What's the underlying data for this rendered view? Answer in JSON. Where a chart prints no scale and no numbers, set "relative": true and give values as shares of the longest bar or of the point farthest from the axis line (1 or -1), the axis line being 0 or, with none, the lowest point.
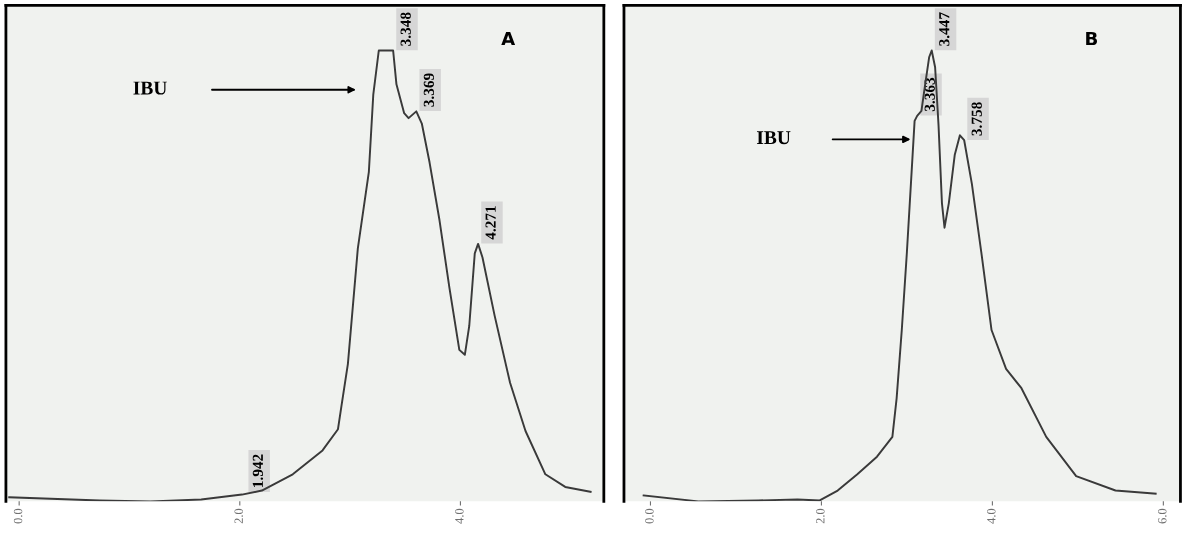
{
  "chart_data": [
    {
      "type": "line",
      "title": "A",
      "relative": true,
      "tick_labels": "x",
      "grid": false,
      "legend": false,
      "marker": "none",
      "line_style": "solid",
      "xlim": [
        -0.12,
        5.3
      ],
      "xticks": [
        {
          "value": 0,
          "label": "0.0"
        },
        {
          "value": 2,
          "label": "2.0"
        },
        {
          "value": 4,
          "label": "4.0"
        }
      ],
      "series": [
        {
          "color": "#3a3a3a",
          "x": [
            -0.09,
            0.73,
            1.19,
            1.65,
            2.02,
            2.2,
            2.48,
            2.75,
            2.89,
            2.92,
            2.98,
            3.07,
            3.17,
            3.21,
            3.26,
            3.39,
            3.42,
            3.49,
            3.53,
            3.6,
            3.65,
            3.72,
            3.81,
            3.9,
            3.99,
            4.04,
            4.08,
            4.13,
            4.16,
            4.2,
            4.31,
            4.45,
            4.59,
            4.77,
            4.95,
            5.18
          ],
          "values": [
            0.009,
            0.002,
            0,
            0.004,
            0.015,
            0.024,
            0.06,
            0.113,
            0.16,
            0.209,
            0.305,
            0.561,
            0.731,
            0.902,
            1.0,
            1.0,
            0.925,
            0.861,
            0.85,
            0.865,
            0.838,
            0.752,
            0.624,
            0.474,
            0.336,
            0.325,
            0.389,
            0.55,
            0.571,
            0.541,
            0.412,
            0.263,
            0.156,
            0.06,
            0.032,
            0.021
          ]
        }
      ],
      "annotations": [
        {
          "text": "3.348",
          "x": 3.39,
          "y": 1.0
        },
        {
          "text": "3.369",
          "x": 3.6,
          "y": 0.865
        },
        {
          "text": "4.271",
          "x": 4.16,
          "y": 0.571
        },
        {
          "text": "1.942",
          "x": 2.05,
          "y": 0.02
        },
        "IBU"
      ]
    },
    {
      "type": "line",
      "title": "B",
      "relative": true,
      "tick_labels": "x",
      "grid": false,
      "legend": false,
      "marker": "none",
      "line_style": "solid",
      "xlim": [
        -0.31,
        6.2
      ],
      "xticks": [
        {
          "value": 0,
          "label": "0.0"
        },
        {
          "value": 2,
          "label": "2.0"
        },
        {
          "value": 4,
          "label": "4.0"
        },
        {
          "value": 6,
          "label": "6.0"
        }
      ],
      "series": [
        {
          "color": "#3a3a3a",
          "x": [
            -0.08,
            0.56,
            1.26,
            1.72,
            1.98,
            2.19,
            2.42,
            2.65,
            2.83,
            2.88,
            2.94,
            3.0,
            3.06,
            3.09,
            3.12,
            3.17,
            3.21,
            3.26,
            3.29,
            3.33,
            3.37,
            3.41,
            3.44,
            3.49,
            3.56,
            3.62,
            3.67,
            3.76,
            3.87,
            3.99,
            4.16,
            4.34,
            4.63,
            4.98,
            5.44,
            5.91
          ],
          "values": [
            0.013,
            0,
            0.002,
            0.004,
            0.002,
            0.024,
            0.06,
            0.099,
            0.143,
            0.229,
            0.38,
            0.553,
            0.747,
            0.844,
            0.855,
            0.866,
            0.92,
            0.985,
            1.0,
            0.963,
            0.834,
            0.661,
            0.607,
            0.661,
            0.769,
            0.812,
            0.801,
            0.704,
            0.553,
            0.38,
            0.294,
            0.251,
            0.143,
            0.056,
            0.024,
            0.017
          ]
        }
      ],
      "annotations": [
        {
          "text": "3.363",
          "x": 3.12,
          "y": 0.855
        },
        {
          "text": "3.447",
          "x": 3.29,
          "y": 1.0
        },
        {
          "text": "3.758",
          "x": 3.67,
          "y": 0.801
        },
        "IBU"
      ]
    }
  ]
}
